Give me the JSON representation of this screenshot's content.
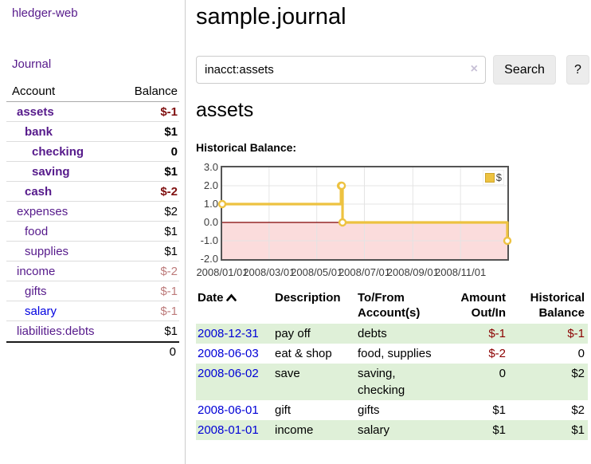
{
  "app": {
    "title": "hledger-web",
    "nav_journal": "Journal"
  },
  "sidebar": {
    "header": {
      "account": "Account",
      "balance": "Balance"
    },
    "accounts": [
      {
        "name": "assets",
        "depth": 1,
        "bold": true,
        "balance": "$-1",
        "neg": "strong",
        "link": "purple"
      },
      {
        "name": "bank",
        "depth": 2,
        "bold": true,
        "balance": "$1",
        "neg": "none",
        "link": "purple"
      },
      {
        "name": "checking",
        "depth": 3,
        "bold": true,
        "balance": "0",
        "neg": "none",
        "link": "purple"
      },
      {
        "name": "saving",
        "depth": 3,
        "bold": true,
        "balance": "$1",
        "neg": "none",
        "link": "purple"
      },
      {
        "name": "cash",
        "depth": 2,
        "bold": true,
        "balance": "$-2",
        "neg": "strong",
        "link": "purple"
      },
      {
        "name": "expenses",
        "depth": 1,
        "bold": false,
        "balance": "$2",
        "neg": "none",
        "link": "purple"
      },
      {
        "name": "food",
        "depth": 2,
        "bold": false,
        "balance": "$1",
        "neg": "none",
        "link": "purple"
      },
      {
        "name": "supplies",
        "depth": 2,
        "bold": false,
        "balance": "$1",
        "neg": "none",
        "link": "purple"
      },
      {
        "name": "income",
        "depth": 1,
        "bold": false,
        "balance": "$-2",
        "neg": "muted",
        "link": "purple"
      },
      {
        "name": "gifts",
        "depth": 2,
        "bold": false,
        "balance": "$-1",
        "neg": "muted",
        "link": "purple"
      },
      {
        "name": "salary",
        "depth": 2,
        "bold": false,
        "balance": "$-1",
        "neg": "muted",
        "link": "blue"
      },
      {
        "name": "liabilities:debts",
        "depth": 1,
        "bold": false,
        "balance": "$1",
        "neg": "none",
        "link": "purple"
      }
    ],
    "total": "0"
  },
  "main": {
    "title": "sample.journal",
    "search": {
      "value": "inacct:assets",
      "clear_icon": "×",
      "button_label": "Search",
      "help_label": "?"
    },
    "account_heading": "assets",
    "chart_label": "Historical Balance:"
  },
  "chart_data": {
    "type": "line",
    "title": "Historical Balance",
    "step": true,
    "series": [
      {
        "name": "$",
        "color": "#edc240",
        "points": [
          [
            "2008-01-01",
            1
          ],
          [
            "2008-06-01",
            2
          ],
          [
            "2008-06-02",
            2
          ],
          [
            "2008-06-03",
            0
          ],
          [
            "2008-12-31",
            -1
          ]
        ]
      }
    ],
    "ylim": [
      -2,
      3
    ],
    "yticks": [
      "3.0",
      "2.0",
      "1.0",
      "0.0",
      "-1.0",
      "-2.0"
    ],
    "xticks": [
      "2008/01/01",
      "2008/03/01",
      "2008/05/01",
      "2008/07/01",
      "2008/09/01",
      "2008/11/01"
    ],
    "legend": {
      "label": "$",
      "position": "top-right"
    },
    "grid": true,
    "zero_line_color": "#800000",
    "negative_fill": "#fbdcdc",
    "border_color": "#545454",
    "gridline_color": "#e4e4e4"
  },
  "register": {
    "headers": [
      "Date",
      "Description",
      "To/From Account(s)",
      "Amount Out/In",
      "Historical Balance"
    ],
    "sort_column": "Date",
    "sort_direction": "ascending",
    "rows": [
      {
        "date": "2008-12-31",
        "description": "pay off",
        "accounts": "debts",
        "amount": "$-1",
        "amount_neg": true,
        "balance": "$-1",
        "balance_neg": true
      },
      {
        "date": "2008-06-03",
        "description": "eat & shop",
        "accounts": "food, supplies",
        "amount": "$-2",
        "amount_neg": true,
        "balance": "0",
        "balance_neg": false
      },
      {
        "date": "2008-06-02",
        "description": "save",
        "accounts": "saving, checking",
        "amount": "0",
        "amount_neg": false,
        "balance": "$2",
        "balance_neg": false
      },
      {
        "date": "2008-06-01",
        "description": "gift",
        "accounts": "gifts",
        "amount": "$1",
        "amount_neg": false,
        "balance": "$2",
        "balance_neg": false
      },
      {
        "date": "2008-01-01",
        "description": "income",
        "accounts": "salary",
        "amount": "$1",
        "amount_neg": false,
        "balance": "$1",
        "balance_neg": false
      }
    ]
  },
  "colors": {
    "link_purple": "#561a8b",
    "link_blue": "#0000e0",
    "negative_strong": "#7f0f0f",
    "negative_muted": "#bd7b7b",
    "negative_table": "#8b0000",
    "row_stripe_green": "#dff0d8",
    "series_yellow": "#edc240"
  }
}
